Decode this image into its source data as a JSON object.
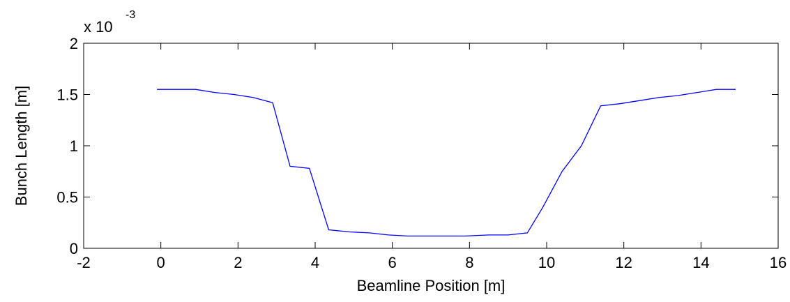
{
  "chart_data": {
    "type": "line",
    "xlabel": "Beamline Position [m]",
    "ylabel": "Bunch Length [m]",
    "y_multiplier": {
      "base": "x 10",
      "exponent": "-3"
    },
    "xlim": [
      -2,
      16
    ],
    "ylim": [
      0,
      2
    ],
    "x_ticks": [
      "-2",
      "0",
      "2",
      "4",
      "6",
      "8",
      "10",
      "12",
      "14",
      "16"
    ],
    "y_ticks": [
      "0",
      "0.5",
      "1",
      "1.5",
      "2"
    ],
    "grid": false,
    "series": [
      {
        "color": "#0000ff",
        "x": [
          -0.1,
          0.9,
          1.4,
          1.9,
          2.4,
          2.9,
          3.35,
          3.85,
          4.35,
          4.9,
          5.4,
          5.9,
          6.4,
          6.9,
          7.4,
          7.9,
          8.5,
          9.0,
          9.5,
          9.9,
          10.4,
          10.9,
          11.4,
          11.9,
          12.4,
          12.9,
          13.4,
          13.9,
          14.4,
          14.9
        ],
        "y": [
          1.55,
          1.55,
          1.52,
          1.5,
          1.47,
          1.42,
          0.8,
          0.78,
          0.18,
          0.16,
          0.15,
          0.13,
          0.12,
          0.12,
          0.12,
          0.12,
          0.13,
          0.13,
          0.15,
          0.4,
          0.75,
          1.0,
          1.39,
          1.41,
          1.44,
          1.47,
          1.49,
          1.52,
          1.55,
          1.55
        ]
      }
    ]
  }
}
